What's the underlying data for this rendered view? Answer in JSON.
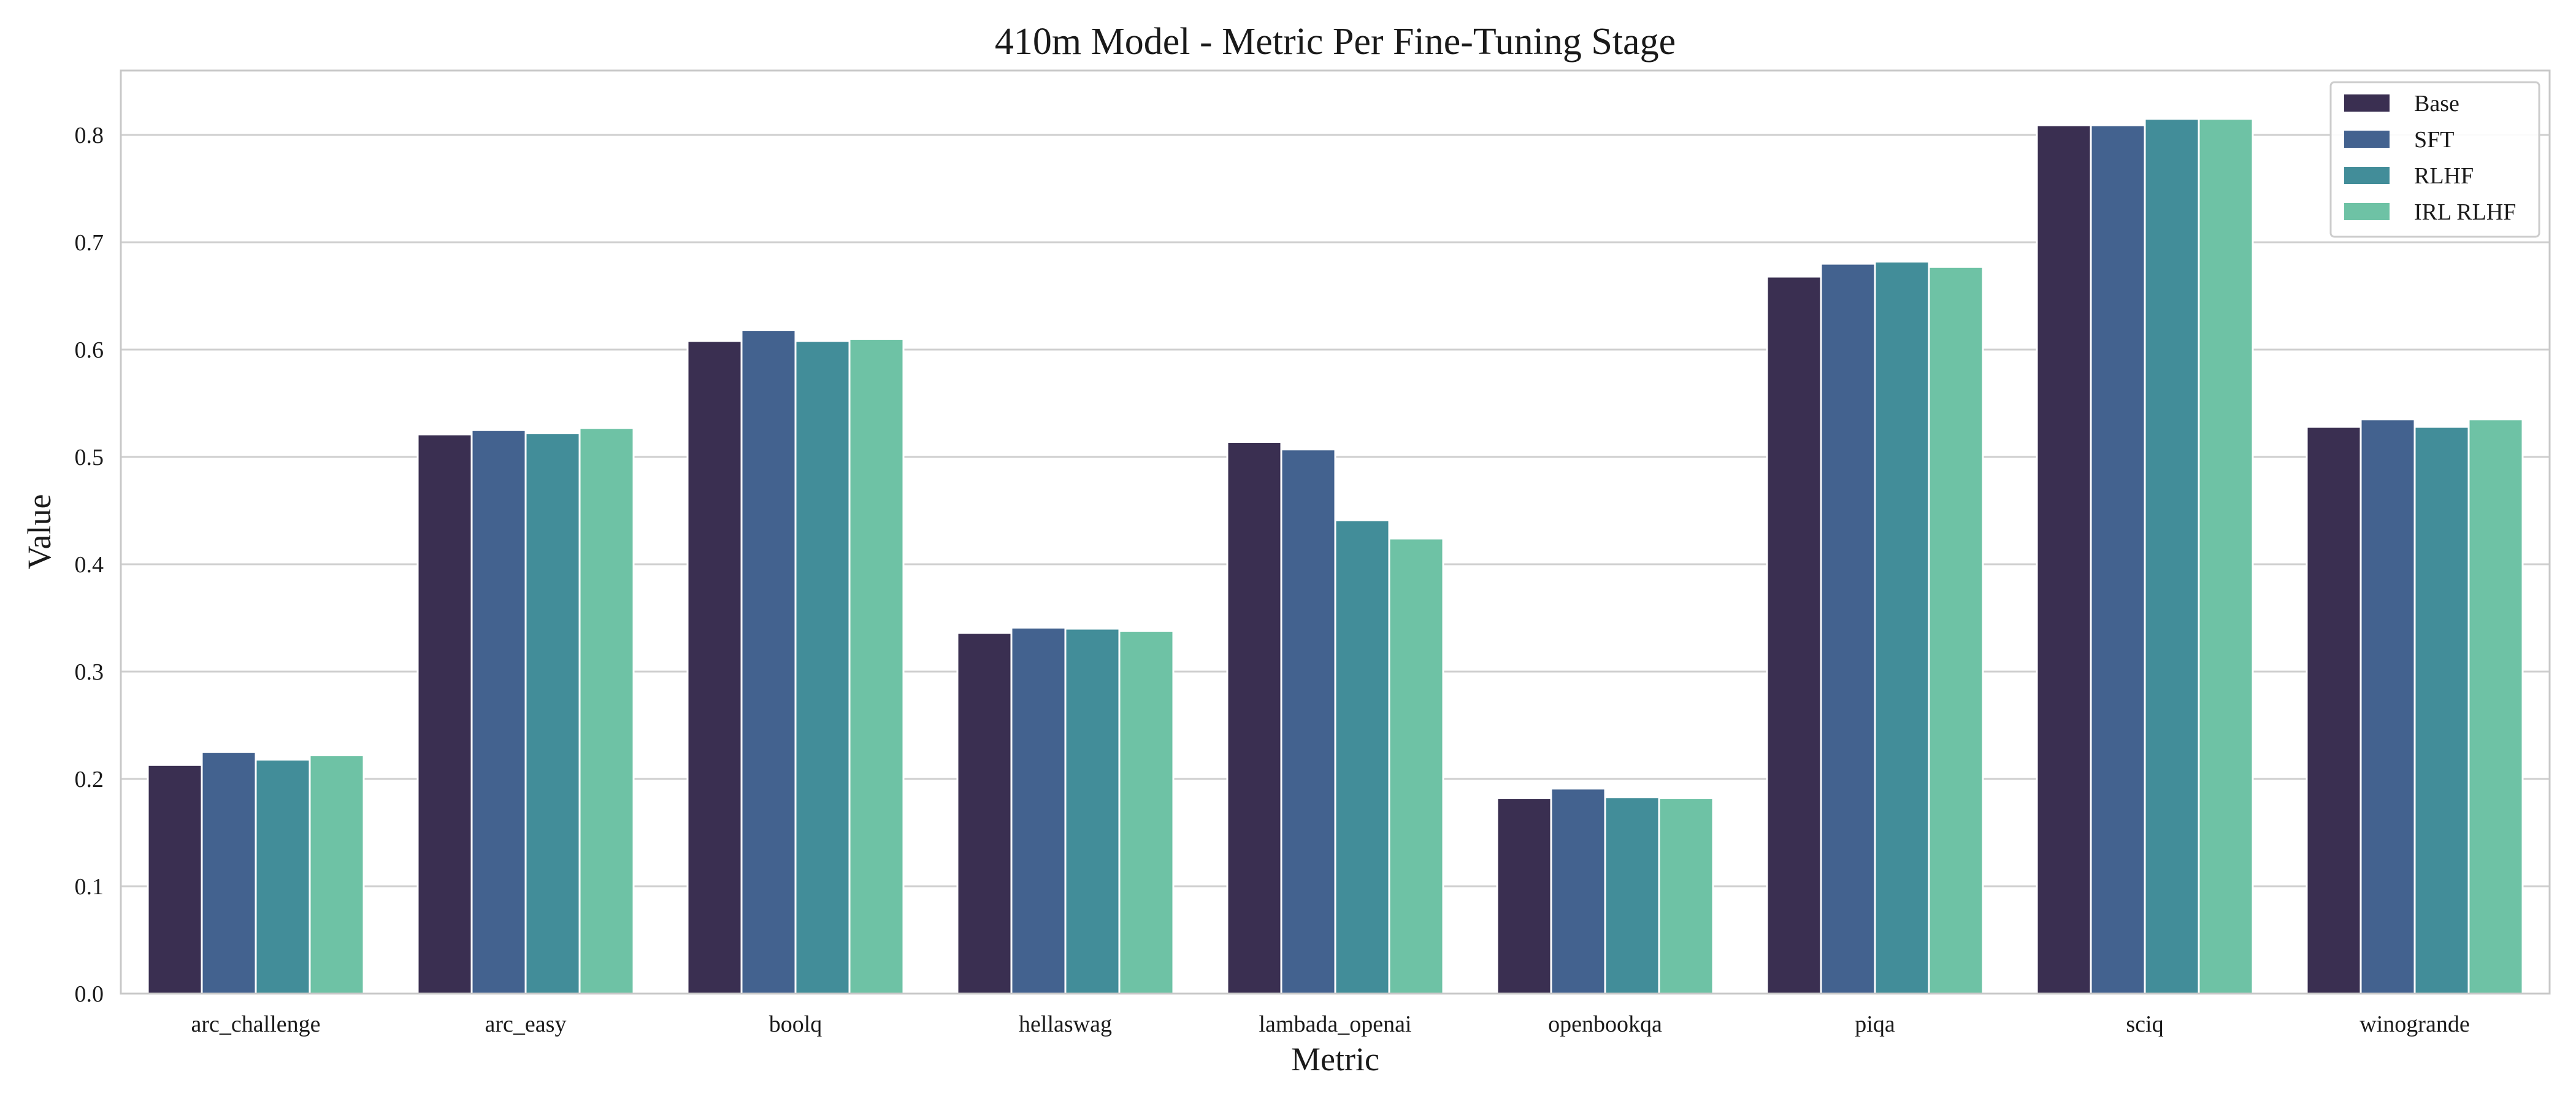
{
  "chart_data": {
    "type": "bar",
    "title": "410m Model - Metric Per Fine-Tuning Stage",
    "xlabel": "Metric",
    "ylabel": "Value",
    "ylim": [
      0,
      0.86
    ],
    "yticks": [
      "0.0",
      "0.1",
      "0.2",
      "0.3",
      "0.4",
      "0.5",
      "0.6",
      "0.7",
      "0.8"
    ],
    "grid": true,
    "legend_position": "top-right",
    "categories": [
      "arc_challenge",
      "arc_easy",
      "boolq",
      "hellaswag",
      "lambada_openai",
      "openbookqa",
      "piqa",
      "sciq",
      "winogrande"
    ],
    "series": [
      {
        "name": "Base",
        "color": "#3a2f51",
        "values": [
          0.213,
          0.521,
          0.608,
          0.336,
          0.514,
          0.182,
          0.668,
          0.809,
          0.528
        ]
      },
      {
        "name": "SFT",
        "color": "#43628f",
        "values": [
          0.225,
          0.525,
          0.618,
          0.341,
          0.507,
          0.191,
          0.68,
          0.809,
          0.535
        ]
      },
      {
        "name": "RLHF",
        "color": "#428d99",
        "values": [
          0.218,
          0.522,
          0.608,
          0.34,
          0.441,
          0.183,
          0.682,
          0.815,
          0.528
        ]
      },
      {
        "name": "IRL RLHF",
        "color": "#6ec2a5",
        "values": [
          0.222,
          0.527,
          0.61,
          0.338,
          0.424,
          0.182,
          0.677,
          0.815,
          0.535
        ]
      }
    ]
  }
}
